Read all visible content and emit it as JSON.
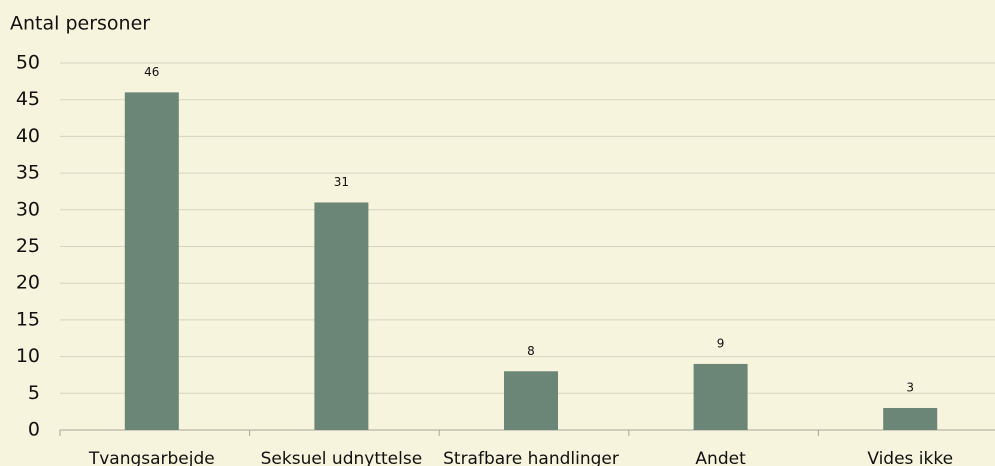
{
  "chart_data": {
    "type": "bar",
    "y_axis_label": "Antal personer",
    "categories": [
      "Tvangsarbejde",
      "Seksuel udnyttelse",
      "Strafbare handlinger",
      "Andet",
      "Vides ikke"
    ],
    "values": [
      46,
      31,
      8,
      9,
      3
    ],
    "color": "#6b8676",
    "ylim": [
      0,
      50
    ],
    "yticks": [
      0,
      5,
      10,
      15,
      20,
      25,
      30,
      35,
      40,
      45,
      50
    ],
    "grid": true,
    "data_labels": true
  }
}
